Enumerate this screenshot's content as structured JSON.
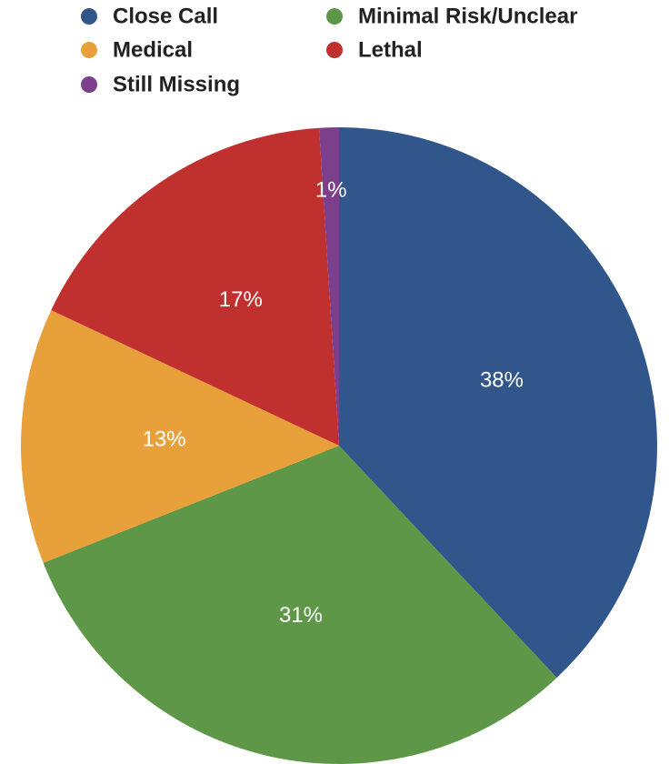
{
  "chart_data": {
    "type": "pie",
    "categories": [
      "Close Call",
      "Minimal Risk/Unclear",
      "Medical",
      "Lethal",
      "Still Missing"
    ],
    "values": [
      38,
      31,
      13,
      17,
      1
    ],
    "value_labels": [
      "38%",
      "31%",
      "13%",
      "17%",
      "1%"
    ],
    "colors": [
      "#30568b",
      "#5d9747",
      "#e8a03a",
      "#c0302f",
      "#7b3f8c"
    ],
    "legend": "top"
  }
}
